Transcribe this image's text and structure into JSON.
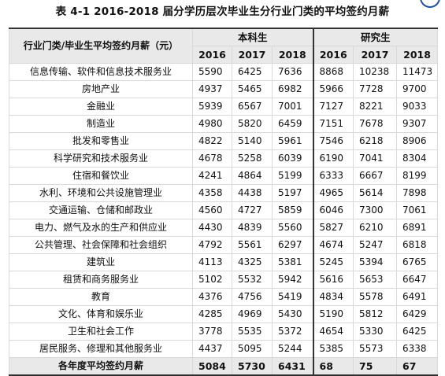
{
  "title": "表 4-1   2016-2018 届分学历层次毕业生分行业门类的平均签约月薪",
  "table": {
    "corner_header": "行业门类/毕业生平均签约月薪（元）",
    "group_headers": [
      "本科生",
      "研究生"
    ],
    "years": [
      "2016",
      "2017",
      "2018",
      "2016",
      "2017",
      "2018"
    ],
    "rows": [
      {
        "name": "信息传输、软件和信息技术服务业",
        "values": [
          "5590",
          "6425",
          "7636",
          "8868",
          "10238",
          "11473"
        ]
      },
      {
        "name": "房地产业",
        "values": [
          "4937",
          "5465",
          "6982",
          "5966",
          "7728",
          "9700"
        ]
      },
      {
        "name": "金融业",
        "values": [
          "5939",
          "6567",
          "7001",
          "7127",
          "8221",
          "9033"
        ]
      },
      {
        "name": "制造业",
        "values": [
          "4980",
          "5820",
          "6459",
          "7151",
          "7678",
          "9307"
        ]
      },
      {
        "name": "批发和零售业",
        "values": [
          "4822",
          "5140",
          "5961",
          "7546",
          "6218",
          "8906"
        ]
      },
      {
        "name": "科学研究和技术服务业",
        "values": [
          "4678",
          "5258",
          "6039",
          "6190",
          "7041",
          "8304"
        ]
      },
      {
        "name": "住宿和餐饮业",
        "values": [
          "4241",
          "4864",
          "5199",
          "6333",
          "6667",
          "8199"
        ]
      },
      {
        "name": "水利、环境和公共设施管理业",
        "values": [
          "4358",
          "4438",
          "5197",
          "4965",
          "5614",
          "7898"
        ]
      },
      {
        "name": "交通运输、仓储和邮政业",
        "values": [
          "4560",
          "4727",
          "5859",
          "6046",
          "7300",
          "7061"
        ]
      },
      {
        "name": "电力、燃气及水的生产和供应业",
        "values": [
          "4430",
          "4839",
          "5560",
          "5827",
          "6210",
          "6891"
        ]
      },
      {
        "name": "公共管理、社会保障和社会组织",
        "values": [
          "4792",
          "5561",
          "6297",
          "4674",
          "5247",
          "6818"
        ]
      },
      {
        "name": "建筑业",
        "values": [
          "4113",
          "4325",
          "5381",
          "5245",
          "5394",
          "6765"
        ]
      },
      {
        "name": "租赁和商务服务业",
        "values": [
          "5102",
          "5532",
          "5942",
          "5616",
          "5653",
          "6647"
        ]
      },
      {
        "name": "教育",
        "values": [
          "4376",
          "4756",
          "5419",
          "4834",
          "5578",
          "6491"
        ]
      },
      {
        "name": "文化、体育和娱乐业",
        "values": [
          "4285",
          "4969",
          "5430",
          "5190",
          "5812",
          "6429"
        ]
      },
      {
        "name": "卫生和社会工作",
        "values": [
          "3778",
          "5535",
          "5372",
          "4654",
          "5330",
          "6425"
        ]
      },
      {
        "name": "居民服务、修理和其他服务业",
        "values": [
          "4437",
          "5095",
          "5244",
          "5385",
          "5573",
          "6338"
        ]
      }
    ],
    "total_row": {
      "name": "各年度平均签约月薪",
      "values": [
        "5084",
        "5730",
        "6431",
        "68",
        "75",
        "67"
      ]
    }
  },
  "colors": {
    "header_bg": "#e9e9e9",
    "grid_line": "#d9d9d9",
    "logo_blue": "#1f4fa3"
  }
}
